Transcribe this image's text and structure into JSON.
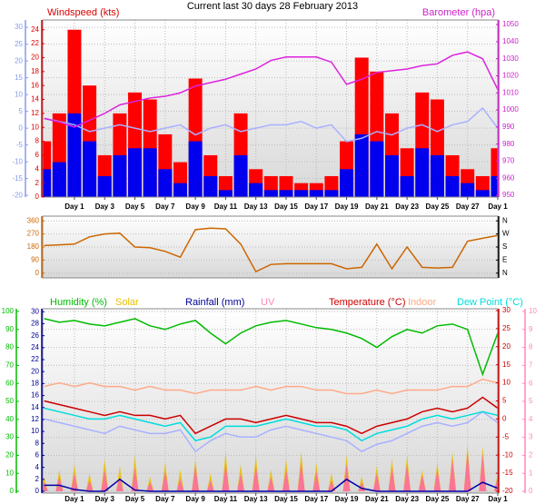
{
  "title": "Current last 30 days 28 February 2013",
  "chart_data": [
    {
      "type": "line",
      "x": [
        -2,
        -1,
        0,
        1,
        2,
        3,
        4,
        5,
        6,
        7,
        8,
        9,
        10,
        11,
        12,
        13,
        14,
        15,
        16,
        17,
        18,
        19,
        20,
        21,
        22,
        23,
        24,
        25,
        26,
        27,
        28
      ],
      "xlim": [
        -2.1,
        28
      ],
      "xticks": [
        {
          "value": 0,
          "label": "Day 1"
        },
        {
          "value": 2,
          "label": "Day 3"
        },
        {
          "value": 4,
          "label": "Day 5"
        },
        {
          "value": 6,
          "label": "Day 7"
        },
        {
          "value": 8,
          "label": "Day 9"
        },
        {
          "value": 10,
          "label": "Day 11"
        },
        {
          "value": 12,
          "label": "Day 13"
        },
        {
          "value": 14,
          "label": "Day 15"
        },
        {
          "value": 16,
          "label": "Day 17"
        },
        {
          "value": 18,
          "label": "Day 19"
        },
        {
          "value": 20,
          "label": "Day 21"
        },
        {
          "value": 22,
          "label": "Day 23"
        },
        {
          "value": 24,
          "label": "Day 25"
        },
        {
          "value": 26,
          "label": "Day 27"
        },
        {
          "value": 28,
          "label": "Day 1"
        }
      ],
      "grid": true,
      "axes": [
        {
          "color": "#8899ee",
          "side": "left",
          "lim": [
            -20.5,
            32.2
          ],
          "ticks": [
            -20,
            -15,
            -10,
            -5,
            0,
            5,
            10,
            15,
            20,
            25,
            30
          ]
        },
        {
          "label": "Windspeed (kts)",
          "color": "#dd0000",
          "side": "left",
          "lim": [
            0,
            25.4
          ],
          "ticks": [
            0,
            2,
            4,
            6,
            8,
            10,
            12,
            14,
            16,
            18,
            20,
            22,
            24
          ]
        },
        {
          "label": "Barometer (hpa)",
          "color": "#cc22cc",
          "side": "right",
          "lim": [
            949,
            1052.7
          ],
          "ticks": [
            950,
            960,
            970,
            980,
            990,
            1000,
            1010,
            1020,
            1030,
            1040,
            1050
          ]
        }
      ],
      "series": [
        {
          "color": "#ff0000",
          "axis": 1,
          "style": "bars",
          "values": [
            8,
            12,
            24,
            16,
            6,
            12,
            15,
            14,
            9,
            5,
            17,
            6,
            3,
            12,
            4,
            3,
            3,
            2,
            2,
            3,
            8,
            20,
            18,
            12,
            7,
            15,
            14,
            6,
            4,
            3,
            7
          ]
        },
        {
          "color": "#0000ee",
          "axis": 1,
          "style": "bars",
          "values": [
            4,
            5,
            12,
            8,
            3,
            6,
            7,
            7,
            4,
            2,
            8,
            3,
            1,
            6,
            2,
            1,
            1,
            1,
            1,
            1,
            4,
            9,
            8,
            6,
            3,
            7,
            6,
            3,
            2,
            1,
            3
          ]
        },
        {
          "color": "#aab0ff",
          "axis": 0,
          "style": "line",
          "values": [
            3,
            2,
            1,
            -1,
            0,
            1,
            0,
            -1,
            0,
            1,
            -2,
            0,
            1,
            -1,
            0,
            1,
            1,
            2,
            0,
            1,
            -4,
            -3,
            -1,
            -2,
            0,
            1,
            -1,
            1,
            2,
            6,
            0
          ]
        },
        {
          "color": "#dd22dd",
          "axis": 2,
          "style": "line",
          "values": [
            995,
            993,
            990,
            994,
            998,
            1003,
            1005,
            1007,
            1008,
            1010,
            1014,
            1016,
            1018,
            1021,
            1024,
            1029,
            1031,
            1031,
            1031,
            1028,
            1015,
            1018,
            1022,
            1023,
            1024,
            1026,
            1027,
            1032,
            1034,
            1030,
            1012
          ]
        }
      ]
    },
    {
      "type": "line",
      "x": [
        -2,
        -1,
        0,
        1,
        2,
        3,
        4,
        5,
        6,
        7,
        8,
        9,
        10,
        11,
        12,
        13,
        14,
        15,
        16,
        17,
        18,
        19,
        20,
        21,
        22,
        23,
        24,
        25,
        26,
        27,
        28
      ],
      "xlim": [
        -2.1,
        28
      ],
      "grid": true,
      "axes": [
        {
          "color": "#cc6600",
          "side": "left",
          "lim": [
            -32.7,
            392.7
          ],
          "ticks": [
            0,
            90,
            180,
            270,
            360
          ]
        },
        {
          "color": "#000000",
          "side": "right",
          "lim": [
            -32.7,
            392.7
          ],
          "ticks": [
            {
              "value": 0,
              "label": "N"
            },
            {
              "value": 90,
              "label": "E"
            },
            {
              "value": 180,
              "label": "S"
            },
            {
              "value": 270,
              "label": "W"
            },
            {
              "value": 360,
              "label": "N"
            }
          ]
        }
      ],
      "series": [
        {
          "color": "#cc6600",
          "axis": 0,
          "style": "line",
          "values": [
            190,
            195,
            200,
            250,
            270,
            275,
            180,
            175,
            150,
            110,
            300,
            310,
            305,
            200,
            10,
            60,
            65,
            65,
            65,
            65,
            30,
            40,
            200,
            30,
            180,
            40,
            35,
            40,
            220,
            240,
            260
          ]
        }
      ]
    },
    {
      "type": "line",
      "x": [
        -2,
        -1,
        0,
        1,
        2,
        3,
        4,
        5,
        6,
        7,
        8,
        9,
        10,
        11,
        12,
        13,
        14,
        15,
        16,
        17,
        18,
        19,
        20,
        21,
        22,
        23,
        24,
        25,
        26,
        27,
        28
      ],
      "xlim": [
        -2.1,
        28
      ],
      "xticks": [
        {
          "value": 0,
          "label": "Day 1"
        },
        {
          "value": 2,
          "label": "Day 3"
        },
        {
          "value": 4,
          "label": "Day 5"
        },
        {
          "value": 6,
          "label": "Day 7"
        },
        {
          "value": 8,
          "label": "Day 9"
        },
        {
          "value": 10,
          "label": "Day 11"
        },
        {
          "value": 12,
          "label": "Day 13"
        },
        {
          "value": 14,
          "label": "Day 15"
        },
        {
          "value": 16,
          "label": "Day 17"
        },
        {
          "value": 18,
          "label": "Day 19"
        },
        {
          "value": 20,
          "label": "Day 21"
        },
        {
          "value": 22,
          "label": "Day 23"
        },
        {
          "value": 24,
          "label": "Day 25"
        },
        {
          "value": 26,
          "label": "Day 27"
        },
        {
          "value": 28,
          "label": "Day 1"
        }
      ],
      "grid": true,
      "axes": [
        {
          "label": "Humidity (%)",
          "color": "#00bb00",
          "side": "left",
          "lim": [
            -1,
            101.5
          ],
          "ticks": [
            0,
            10,
            20,
            30,
            40,
            50,
            60,
            70,
            80,
            90,
            100
          ]
        },
        {
          "label": "Rainfall (mm)",
          "color": "#000099",
          "side": "left",
          "lim": [
            -0.3,
            30.5
          ],
          "ticks": [
            0,
            2,
            4,
            6,
            8,
            10,
            12,
            14,
            16,
            18,
            20,
            22,
            24,
            26,
            28,
            30
          ]
        },
        {
          "label": "Temperature (°C)",
          "color": "#cc0000",
          "side": "right",
          "lim": [
            -20.5,
            30.5
          ],
          "ticks": [
            -20,
            -15,
            -10,
            -5,
            0,
            5,
            10,
            15,
            20,
            25,
            30
          ]
        },
        {
          "label": "UV",
          "color": "#ff88bb",
          "side": "right",
          "lim": [
            -0.1,
            10.15
          ],
          "ticks": [
            0,
            1,
            2,
            3,
            4,
            5,
            6,
            7,
            8,
            9,
            10
          ]
        }
      ],
      "series": [
        {
          "color": "#00bb00",
          "axis": 0,
          "style": "line",
          "values": [
            96,
            94,
            95,
            93,
            92,
            94,
            96,
            92,
            90,
            93,
            95,
            88,
            82,
            88,
            92,
            94,
            95,
            93,
            91,
            90,
            88,
            85,
            80,
            86,
            90,
            88,
            92,
            93,
            90,
            65,
            88
          ]
        },
        {
          "name": "Solar",
          "color": "#e8c000",
          "axis": 0,
          "style": "spikes",
          "values": [
            8,
            12,
            15,
            10,
            18,
            14,
            20,
            8,
            16,
            12,
            18,
            10,
            22,
            15,
            20,
            12,
            18,
            22,
            16,
            10,
            20,
            8,
            14,
            18,
            20,
            12,
            16,
            22,
            26,
            25,
            10
          ]
        },
        {
          "color": "#ff66aa",
          "axis": 3,
          "style": "spikes",
          "values": [
            0.5,
            0.8,
            1,
            0.6,
            1.2,
            0.8,
            1.3,
            0.5,
            1.1,
            0.7,
            1.4,
            0.6,
            1.5,
            1,
            1.4,
            0.8,
            1.2,
            1.6,
            1.1,
            0.6,
            1.5,
            0.5,
            1,
            1.3,
            1.5,
            0.9,
            1.2,
            1.8,
            2.2,
            2.1,
            0.8
          ]
        },
        {
          "color": "#0000aa",
          "axis": 1,
          "style": "line",
          "values": [
            1,
            1,
            0.3,
            0,
            0,
            2,
            0.2,
            0,
            0,
            0,
            0,
            0,
            0,
            0,
            0,
            0,
            0,
            0,
            0,
            0,
            2,
            0.5,
            0,
            0,
            0,
            0,
            0,
            0,
            0,
            1.5,
            0.5
          ]
        },
        {
          "color": "#aab0ff",
          "axis": 2,
          "style": "line",
          "values": [
            0,
            -1,
            -2,
            -3,
            -4,
            -2,
            -3,
            -4,
            -4,
            -3,
            -9,
            -6,
            -4,
            -5,
            -5,
            -3,
            -2,
            -3,
            -4,
            -5,
            -6,
            -9,
            -7,
            -6,
            -4,
            -2,
            -1,
            -2,
            -1,
            2,
            -1
          ]
        },
        {
          "name": "Indoor",
          "color": "#ffaa88",
          "axis": 2,
          "style": "line",
          "values": [
            9,
            10,
            9,
            10,
            9,
            9,
            8,
            9,
            8,
            8,
            7,
            8,
            8,
            8,
            9,
            8,
            9,
            9,
            8,
            8,
            7,
            7,
            8,
            7,
            8,
            8,
            8,
            9,
            9,
            11,
            10
          ]
        },
        {
          "name": "Dew Point (°C)",
          "color": "#00dddd",
          "axis": 2,
          "style": "line",
          "values": [
            3,
            2,
            1,
            0,
            0,
            1,
            0,
            -1,
            -2,
            -1,
            -6,
            -5,
            -2,
            -2,
            -2,
            -1,
            0,
            -1,
            -2,
            -2,
            -3,
            -6,
            -4,
            -3,
            -2,
            0,
            1,
            0,
            1,
            2,
            1
          ]
        },
        {
          "color": "#cc0000",
          "axis": 2,
          "style": "line",
          "values": [
            5,
            4,
            3,
            2,
            1,
            2,
            1,
            1,
            0,
            1,
            -4,
            -2,
            0,
            0,
            -1,
            0,
            1,
            0,
            -1,
            -1,
            -2,
            -4,
            -2,
            -1,
            0,
            2,
            3,
            2,
            3,
            6,
            3
          ]
        }
      ]
    }
  ]
}
